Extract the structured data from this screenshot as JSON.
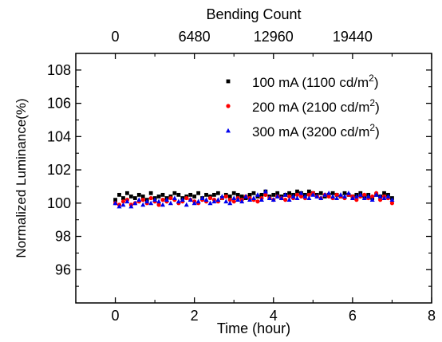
{
  "chart_data": {
    "type": "scatter",
    "xlabel": "Time (hour)",
    "ylabel": "Normalized Luminance(%)",
    "top_axis_label": "Bending Count",
    "xlim": [
      -1,
      8
    ],
    "ylim": [
      94,
      109
    ],
    "x_ticks": [
      0,
      2,
      4,
      6,
      8
    ],
    "x_tick_labels": [
      "0",
      "2",
      "4",
      "6",
      "8"
    ],
    "y_ticks": [
      96,
      98,
      100,
      102,
      104,
      106,
      108
    ],
    "y_tick_labels": [
      "96",
      "98",
      "100",
      "102",
      "104",
      "106",
      "108"
    ],
    "top_ticks_time": [
      0,
      2,
      4,
      6
    ],
    "top_tick_labels": [
      "0",
      "6480",
      "12960",
      "19440"
    ],
    "grid": false,
    "legend_position": "top-right",
    "series": [
      {
        "name": "100 mA (1100 cd/m²)",
        "label_main": "100 mA (1100 cd/m",
        "label_sup": "2",
        "label_end": ")",
        "color": "#000000",
        "marker": "square",
        "x_start": 0,
        "x_end": 7.0,
        "x_step": 0.1,
        "values": [
          100.2,
          100.5,
          100.3,
          100.6,
          100.4,
          100.3,
          100.5,
          100.4,
          100.2,
          100.6,
          100.3,
          100.4,
          100.5,
          100.3,
          100.4,
          100.6,
          100.5,
          100.3,
          100.4,
          100.5,
          100.4,
          100.6,
          100.3,
          100.5,
          100.4,
          100.5,
          100.6,
          100.3,
          100.5,
          100.4,
          100.6,
          100.5,
          100.4,
          100.3,
          100.5,
          100.6,
          100.4,
          100.5,
          100.7,
          100.4,
          100.5,
          100.6,
          100.4,
          100.5,
          100.6,
          100.5,
          100.7,
          100.6,
          100.5,
          100.7,
          100.6,
          100.5,
          100.6,
          100.4,
          100.5,
          100.6,
          100.5,
          100.4,
          100.6,
          100.5,
          100.4,
          100.5,
          100.6,
          100.4,
          100.5,
          100.3,
          100.5,
          100.4,
          100.6,
          100.5,
          100.3
        ]
      },
      {
        "name": "200 mA (2100 cd/m²)",
        "label_main": "200 mA (2100 cd/m",
        "label_sup": "2",
        "label_end": ")",
        "color": "#ff0000",
        "marker": "circle",
        "x_start": 0,
        "x_end": 7.0,
        "x_step": 0.1,
        "values": [
          100.0,
          99.9,
          100.1,
          100.2,
          99.9,
          100.0,
          100.1,
          100.2,
          100.0,
          100.3,
          100.1,
          99.9,
          100.2,
          100.1,
          100.3,
          100.2,
          100.0,
          100.1,
          100.3,
          100.2,
          100.1,
          100.0,
          100.2,
          100.1,
          100.3,
          100.2,
          100.1,
          100.3,
          100.4,
          100.2,
          100.1,
          100.3,
          100.2,
          100.4,
          100.3,
          100.2,
          100.1,
          100.3,
          100.5,
          100.3,
          100.2,
          100.4,
          100.3,
          100.2,
          100.4,
          100.3,
          100.5,
          100.4,
          100.3,
          100.5,
          100.6,
          100.4,
          100.3,
          100.5,
          100.4,
          100.3,
          100.5,
          100.4,
          100.3,
          100.5,
          100.4,
          100.2,
          100.4,
          100.5,
          100.3,
          100.4,
          100.6,
          100.2,
          100.4,
          100.3,
          100.0
        ]
      },
      {
        "name": "300 mA (3200 cd/m²)",
        "label_main": "300 mA (3200 cd/m",
        "label_sup": "2",
        "label_end": ")",
        "color": "#0000ee",
        "marker": "triangle",
        "x_start": 0,
        "x_end": 7.0,
        "x_step": 0.1,
        "values": [
          100.0,
          99.8,
          99.9,
          100.1,
          99.8,
          100.0,
          100.2,
          99.9,
          100.1,
          100.0,
          100.2,
          100.1,
          99.9,
          100.2,
          100.0,
          100.3,
          100.1,
          100.2,
          99.9,
          100.2,
          100.0,
          100.1,
          100.3,
          100.2,
          100.0,
          100.1,
          100.2,
          100.4,
          100.1,
          100.0,
          100.3,
          100.2,
          100.1,
          100.4,
          100.2,
          100.3,
          100.5,
          100.2,
          100.7,
          100.3,
          100.2,
          100.4,
          100.3,
          100.5,
          100.2,
          100.4,
          100.3,
          100.6,
          100.4,
          100.3,
          100.5,
          100.4,
          100.3,
          100.5,
          100.6,
          100.4,
          100.3,
          100.5,
          100.4,
          100.6,
          100.3,
          100.4,
          100.5,
          100.3,
          100.4,
          100.2,
          100.5,
          100.4,
          100.3,
          100.4,
          100.2
        ]
      }
    ]
  }
}
